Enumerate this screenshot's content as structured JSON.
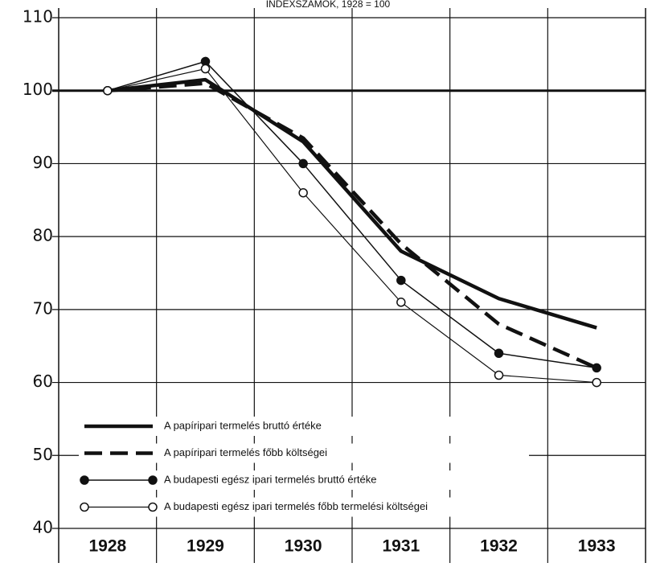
{
  "chart_data": {
    "type": "line",
    "title": "INDEXSZÁMOK, 1928 = 100",
    "categories": [
      "1928",
      "1929",
      "1930",
      "1931",
      "1932",
      "1933"
    ],
    "series": [
      {
        "name": "A papíripari termelés bruttó értéke",
        "color": "#111111",
        "line_width": 4.5,
        "values": [
          100,
          101.5,
          93,
          78,
          71.5,
          67.5
        ]
      },
      {
        "name": "A papíripari termelés főbb költségei",
        "color": "#111111",
        "line_width": 4.5,
        "dash": true,
        "values": [
          100,
          101,
          93.5,
          79,
          68,
          62
        ]
      },
      {
        "name": "A budapesti egész ipari termelés bruttó értéke",
        "color": "#111111",
        "line_width": 1.5,
        "marker": "filled",
        "values": [
          100,
          104,
          90,
          74,
          64,
          62
        ]
      },
      {
        "name": "A budapesti egész ipari termelés főbb termelési költségei",
        "color": "#111111",
        "line_width": 1.2,
        "marker": "open",
        "values": [
          100,
          103,
          86,
          71,
          61,
          60
        ]
      }
    ],
    "ylim": [
      40,
      110
    ],
    "yticks": [
      40,
      50,
      60,
      70,
      80,
      90,
      100,
      110
    ],
    "reference_line": 100,
    "grid": true,
    "legend": "lower left"
  }
}
